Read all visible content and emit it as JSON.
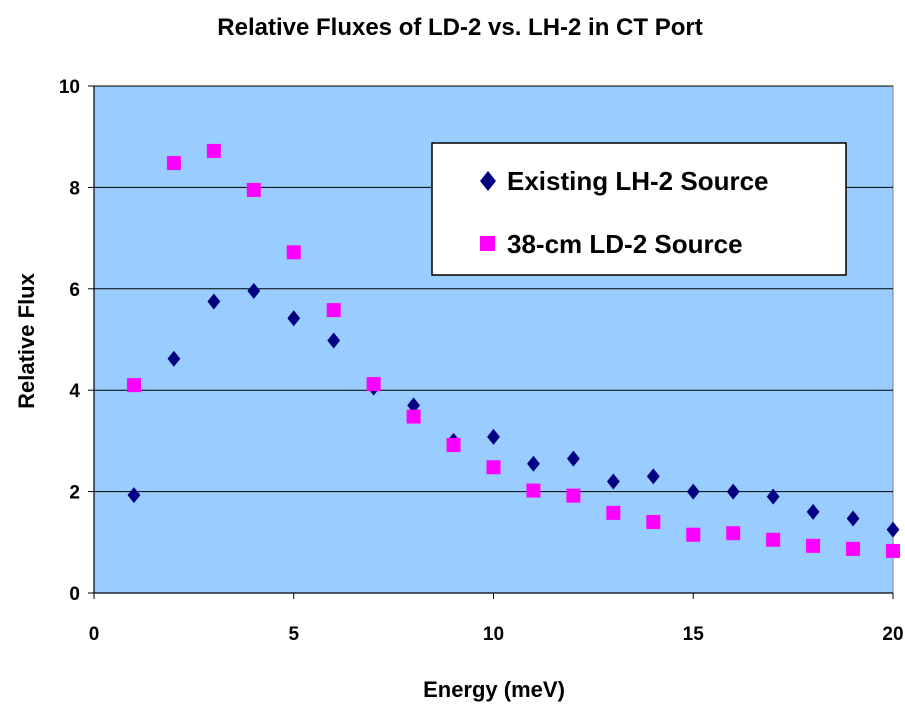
{
  "chart_data": {
    "type": "scatter",
    "title": "Relative Fluxes of LD-2 vs. LH-2 in CT Port",
    "xlabel": "Energy (meV)",
    "ylabel": "Relative Flux",
    "xlim": [
      0,
      20
    ],
    "ylim": [
      0,
      10
    ],
    "xticks": [
      0,
      5,
      10,
      15,
      20
    ],
    "yticks": [
      0,
      2,
      4,
      6,
      8,
      10
    ],
    "grid": "horizontal",
    "legend_position": "top-right",
    "plot_background": "#99ccff",
    "series": [
      {
        "name": "Existing LH-2 Source",
        "marker": "diamond",
        "color": "#000080",
        "x": [
          1,
          2,
          3,
          4,
          5,
          6,
          7,
          8,
          9,
          10,
          11,
          12,
          13,
          14,
          15,
          16,
          17,
          18,
          19,
          20
        ],
        "y": [
          1.93,
          4.62,
          5.75,
          5.96,
          5.42,
          4.98,
          4.05,
          3.7,
          3.0,
          3.08,
          2.55,
          2.65,
          2.2,
          2.3,
          2.0,
          2.0,
          1.9,
          1.6,
          1.47,
          1.25
        ]
      },
      {
        "name": "38-cm LD-2 Source",
        "marker": "square",
        "color": "#ff00ff",
        "x": [
          1,
          2,
          3,
          4,
          5,
          6,
          7,
          8,
          9,
          10,
          11,
          12,
          13,
          14,
          15,
          16,
          17,
          18,
          19,
          20
        ],
        "y": [
          4.1,
          8.48,
          8.72,
          7.95,
          6.72,
          5.58,
          4.12,
          3.48,
          2.92,
          2.48,
          2.02,
          1.92,
          1.58,
          1.4,
          1.15,
          1.18,
          1.05,
          0.93,
          0.87,
          0.83
        ]
      }
    ]
  }
}
